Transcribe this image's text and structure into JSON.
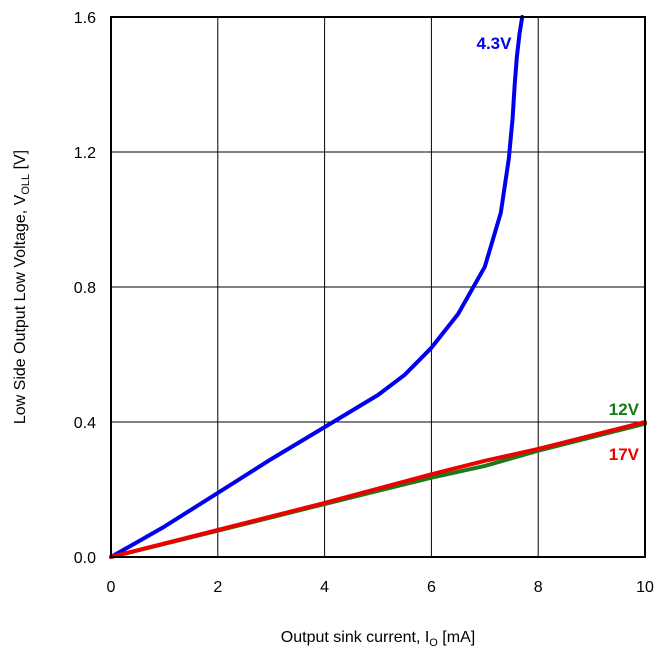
{
  "chart_data": {
    "type": "line",
    "xlabel": "Output sink current, I",
    "xlabel_sub": "O",
    "xlabel_suffix": " [mA]",
    "ylabel": "Low Side Output Low Voltage, V",
    "ylabel_sub": "OLL",
    "ylabel_suffix": " [V]",
    "xlim": [
      0,
      10
    ],
    "ylim": [
      0,
      1.6
    ],
    "xticks": [
      "0",
      "2",
      "4",
      "6",
      "8",
      "10"
    ],
    "yticks": [
      "0.0",
      "0.4",
      "0.8",
      "1.2",
      "1.6"
    ],
    "grid": true,
    "series": [
      {
        "name": "4.3V",
        "color": "#0000ee",
        "x": [
          0,
          1,
          2,
          3,
          4,
          5,
          5.5,
          6,
          6.5,
          7,
          7.3,
          7.45,
          7.52,
          7.56,
          7.6,
          7.65,
          7.7
        ],
        "y": [
          0,
          0.09,
          0.19,
          0.29,
          0.385,
          0.48,
          0.54,
          0.62,
          0.72,
          0.86,
          1.02,
          1.18,
          1.3,
          1.4,
          1.48,
          1.55,
          1.6
        ]
      },
      {
        "name": "12V",
        "color": "#1a7a1a",
        "x": [
          0,
          2,
          4,
          6,
          7,
          8,
          10
        ],
        "y": [
          0,
          0.078,
          0.157,
          0.235,
          0.27,
          0.315,
          0.395
        ]
      },
      {
        "name": "17V",
        "color": "#ee0000",
        "x": [
          0,
          2,
          4,
          6,
          7,
          8,
          10
        ],
        "y": [
          0,
          0.08,
          0.16,
          0.245,
          0.285,
          0.32,
          0.4
        ]
      }
    ]
  }
}
